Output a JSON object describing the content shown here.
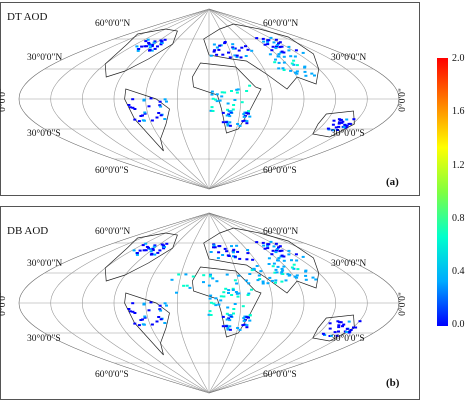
{
  "panels": [
    {
      "title": "DT AOD",
      "label": "(a)",
      "lat_labels": [
        "60°0'0\"N",
        "30°0'0\"N",
        "30°0'0\"S",
        "60°0'0\"S"
      ],
      "equator_label": "0°0'0\""
    },
    {
      "title": "DB AOD",
      "label": "(b)",
      "lat_labels": [
        "60°0'0\"N",
        "30°0'0\"N",
        "30°0'0\"S",
        "60°0'0\"S"
      ],
      "equator_label": "0°0'0\""
    }
  ],
  "colorbar": {
    "ticks": [
      "2.0",
      "1.6",
      "1.2",
      "0.8",
      "0.4",
      "0.0"
    ],
    "min": 0.0,
    "max": 2.0,
    "colors": [
      "#0000ff",
      "#00aaff",
      "#00ffcc",
      "#80ff40",
      "#ffff00",
      "#ff8000",
      "#ff0000"
    ]
  }
}
